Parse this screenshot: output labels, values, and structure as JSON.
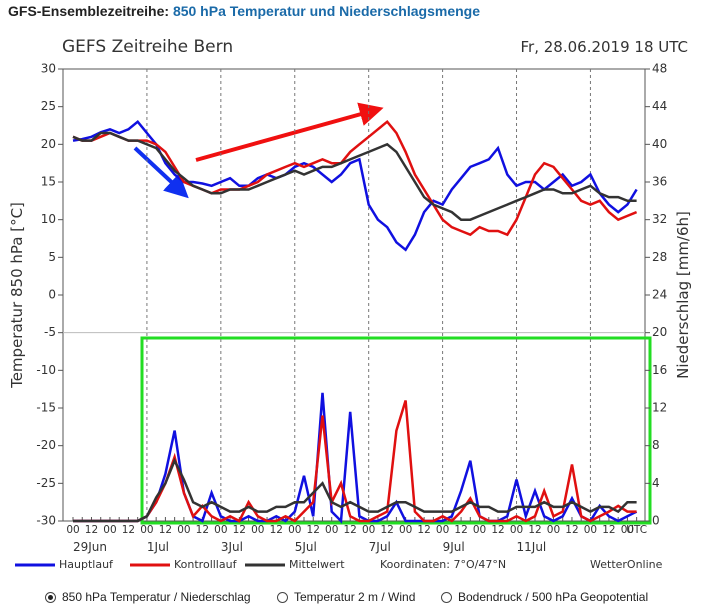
{
  "header": {
    "title": "GFS-Ensemblezeitreihe:",
    "subtitle": "850 hPa Temperatur und Niederschlagsmenge"
  },
  "chart_data": {
    "type": "line",
    "title": "GEFS Zeitreihe Bern",
    "subtitle": "Fr, 28.06.2019 18 UTC",
    "y_label": "Temperatur 850 hPa [°C]",
    "y2_label": "Niederschlag [mm/6h]",
    "categories": [
      "00",
      null,
      "12",
      null,
      "00",
      null,
      "12",
      null,
      "00",
      null,
      "12",
      null,
      "00",
      null,
      "12",
      null,
      "00",
      null,
      "12",
      null,
      "00",
      null,
      "12",
      null,
      "00",
      null,
      "12",
      null,
      "00",
      null,
      "12",
      null,
      "00",
      null,
      "12",
      null,
      "00",
      null,
      "12",
      null,
      "00",
      null,
      "12",
      null,
      "00",
      null,
      "12",
      null,
      "00",
      null,
      "12",
      null,
      "00",
      null,
      "12",
      null,
      "00",
      null,
      "12",
      null,
      "00",
      "UTC"
    ],
    "date_labels": [
      "29Jun",
      null,
      null,
      null,
      null,
      null,
      null,
      null,
      "1Jul",
      null,
      null,
      null,
      null,
      null,
      null,
      null,
      "3Jul",
      null,
      null,
      null,
      null,
      null,
      null,
      null,
      "5Jul",
      null,
      null,
      null,
      null,
      null,
      null,
      null,
      "7Jul",
      null,
      null,
      null,
      null,
      null,
      null,
      null,
      "9Jul",
      null,
      null,
      null,
      null,
      null,
      null,
      null,
      "11Jul",
      null,
      null,
      null,
      null,
      null,
      null,
      null,
      null,
      null,
      null,
      null,
      null,
      null
    ],
    "ylim": [
      -30,
      30
    ],
    "yticks": [
      -30,
      -25,
      -20,
      -15,
      -10,
      -5,
      0,
      5,
      10,
      15,
      20,
      25,
      30
    ],
    "y2lim": [
      0,
      48
    ],
    "y2ticks": [
      0,
      4,
      8,
      12,
      16,
      20,
      24,
      28,
      32,
      36,
      40,
      44,
      48
    ],
    "series": [
      {
        "name": "Hauptlauf",
        "color": "#1010e0",
        "values": [
          20.5,
          20.7,
          21,
          21.6,
          22,
          21.5,
          22,
          23,
          21.5,
          20,
          17.5,
          16,
          15,
          15,
          14.8,
          14.5,
          15,
          15.5,
          14.5,
          14.5,
          15.5,
          16,
          15.5,
          16,
          17,
          17.5,
          17,
          16,
          15,
          16,
          17.5,
          18,
          12,
          10,
          9,
          7,
          6,
          8,
          11,
          12.5,
          12,
          14,
          15.5,
          17,
          17.5,
          18,
          19.5,
          16,
          14.5,
          15,
          15,
          14,
          15,
          16,
          14.5,
          15,
          16,
          13.5,
          12,
          11,
          12,
          14
        ],
        "axis2_values": [
          0,
          0,
          0,
          0,
          0,
          0,
          0,
          0,
          0.5,
          2,
          5,
          9.6,
          3,
          0.5,
          0,
          3,
          0.5,
          0,
          0,
          0.5,
          0,
          0,
          0.5,
          0,
          1,
          4.8,
          0.5,
          13.6,
          1,
          0,
          11.6,
          0.5,
          0,
          0,
          0.5,
          2,
          0,
          0,
          0,
          0,
          0,
          0.5,
          3.2,
          6.4,
          0.5,
          0,
          0,
          0.5,
          4.4,
          0.5,
          3.2,
          0.5,
          0,
          0.5,
          2.4,
          0.5,
          0,
          1.6,
          0.5,
          0,
          0.5,
          1
        ]
      },
      {
        "name": "Kontrolllauf",
        "color": "#e01010",
        "values": [
          21,
          20.5,
          20.5,
          21,
          21.5,
          21,
          20.5,
          20.5,
          20.5,
          20,
          19,
          17,
          15,
          14.5,
          14,
          13.5,
          14,
          14,
          14,
          14.5,
          15,
          16,
          16.5,
          17,
          17.5,
          17,
          17.5,
          18,
          17.5,
          17.5,
          19,
          20,
          21,
          22,
          23,
          21.5,
          19,
          16,
          14,
          12,
          10,
          9,
          8.5,
          8,
          9,
          8.5,
          8.5,
          8,
          10,
          13,
          16,
          17.5,
          17,
          15.5,
          14,
          12.5,
          12,
          12.5,
          11,
          10,
          10.5,
          11
        ],
        "axis2_values": [
          0,
          0,
          0,
          0,
          0,
          0,
          0,
          0,
          0.5,
          2,
          4,
          6.8,
          3,
          0.5,
          1.6,
          0.5,
          0,
          0.5,
          0,
          2,
          0.5,
          0,
          0,
          0.5,
          0,
          1,
          2,
          11.2,
          2,
          4,
          0.5,
          0,
          0,
          0.5,
          1,
          9.6,
          12.8,
          1,
          0,
          0,
          0.5,
          0,
          1,
          2.4,
          0.5,
          0,
          0,
          0,
          0.5,
          0,
          0.5,
          3.2,
          0.5,
          1,
          6,
          0.5,
          0,
          0.5,
          1,
          1.6,
          1,
          1
        ]
      },
      {
        "name": "Mittelwert",
        "color": "#333333",
        "values": [
          21,
          20.5,
          20.5,
          21.5,
          21.5,
          21,
          20.5,
          20.5,
          20,
          19.5,
          18,
          16.5,
          15.5,
          14.5,
          14,
          13.5,
          13.5,
          14,
          14,
          14,
          14.5,
          15,
          15.5,
          16,
          16.5,
          16,
          16.5,
          17,
          17,
          17.5,
          18,
          18.5,
          19,
          19.5,
          20,
          19,
          17,
          15,
          13,
          12,
          11.5,
          11,
          10,
          10,
          10.5,
          11,
          11.5,
          12,
          12.5,
          13,
          13.5,
          14,
          14,
          13.5,
          13.5,
          14,
          14.5,
          13.5,
          13,
          13,
          12.5,
          12.5
        ],
        "axis2_values": [
          0,
          0,
          0,
          0,
          0,
          0,
          0,
          0,
          0.5,
          2.5,
          4,
          6.4,
          4.4,
          2,
          1.5,
          2,
          1.5,
          1,
          1,
          1.5,
          1,
          1,
          1.5,
          1.5,
          2,
          2,
          3,
          4,
          2,
          1.5,
          2,
          1.5,
          1,
          1,
          1.5,
          2,
          2,
          1.5,
          1,
          1,
          1,
          1,
          1.5,
          2,
          1.5,
          1.5,
          1,
          1,
          1.5,
          1.5,
          1.5,
          2,
          1.5,
          1.5,
          2,
          1.5,
          1,
          1.5,
          1.5,
          1,
          2,
          2
        ]
      }
    ],
    "coordinates": "Koordinaten: 7°O/47°N",
    "credit": "WetterOnline"
  },
  "options": [
    "850 hPa Temperatur / Niederschlag",
    "Temperatur 2 m / Wind",
    "Bodendruck / 500 hPa Geopotential"
  ],
  "selected_option": 0
}
